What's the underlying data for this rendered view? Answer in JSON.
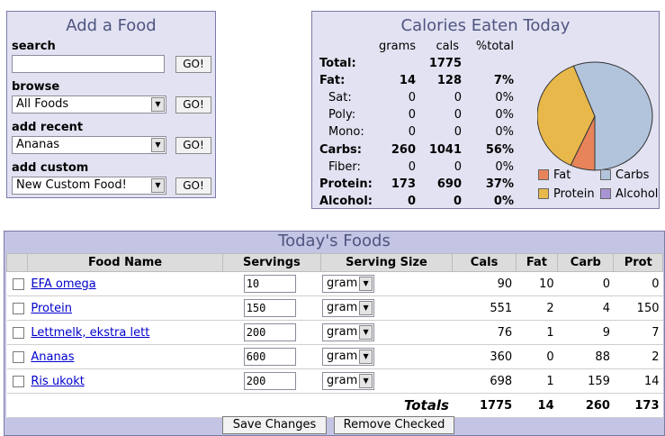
{
  "add_food": {
    "title": "Add a Food",
    "search_label": "search",
    "search_value": "",
    "browse_label": "browse",
    "browse_value": "All Foods",
    "recent_label": "add recent",
    "recent_value": "Ananas",
    "custom_label": "add custom",
    "custom_value": "New Custom Food!",
    "go_label": "GO!"
  },
  "calories": {
    "title": "Calories Eaten Today",
    "headers": [
      "grams",
      "cals",
      "%total"
    ],
    "rows": [
      {
        "label": "Total:",
        "grams": "",
        "cals": "1775",
        "pct": "",
        "bold": true
      },
      {
        "label": "Fat:",
        "grams": "14",
        "cals": "128",
        "pct": "7%",
        "bold": true
      },
      {
        "label": "Sat:",
        "grams": "0",
        "cals": "0",
        "pct": "0%",
        "bold": false
      },
      {
        "label": "Poly:",
        "grams": "0",
        "cals": "0",
        "pct": "0%",
        "bold": false
      },
      {
        "label": "Mono:",
        "grams": "0",
        "cals": "0",
        "pct": "0%",
        "bold": false
      },
      {
        "label": "Carbs:",
        "grams": "260",
        "cals": "1041",
        "pct": "56%",
        "bold": true
      },
      {
        "label": "Fiber:",
        "grams": "0",
        "cals": "0",
        "pct": "0%",
        "bold": false
      },
      {
        "label": "Protein:",
        "grams": "173",
        "cals": "690",
        "pct": "37%",
        "bold": true
      },
      {
        "label": "Alcohol:",
        "grams": "0",
        "cals": "0",
        "pct": "0%",
        "bold": true
      }
    ],
    "legend": {
      "fat": "Fat",
      "carbs": "Carbs",
      "protein": "Protein",
      "alcohol": "Alcohol"
    },
    "colors": {
      "fat": "#e8845a",
      "carbs": "#b2c4dc",
      "protein": "#e8b84a",
      "alcohol": "#a894d4"
    },
    "pie_values": {
      "fat": 128,
      "carbs": 1041,
      "protein": 690,
      "alcohol": 0
    }
  },
  "foods": {
    "title": "Today's Foods",
    "columns": [
      "Food Name",
      "Servings",
      "Serving Size",
      "Cals",
      "Fat",
      "Carb",
      "Prot"
    ],
    "items": [
      {
        "name": "EFA omega",
        "servings": "10",
        "size": "gram",
        "cals": "90",
        "fat": "10",
        "carb": "0",
        "prot": "0"
      },
      {
        "name": "Protein",
        "servings": "150",
        "size": "gram",
        "cals": "551",
        "fat": "2",
        "carb": "4",
        "prot": "150"
      },
      {
        "name": "Lettmelk, ekstra lett",
        "servings": "200",
        "size": "gram",
        "cals": "76",
        "fat": "1",
        "carb": "9",
        "prot": "7"
      },
      {
        "name": "Ananas",
        "servings": "600",
        "size": "gram",
        "cals": "360",
        "fat": "0",
        "carb": "88",
        "prot": "2"
      },
      {
        "name": "Ris ukokt",
        "servings": "200",
        "size": "gram",
        "cals": "698",
        "fat": "1",
        "carb": "159",
        "prot": "14"
      }
    ],
    "totals": {
      "label": "Totals",
      "cals": "1775",
      "fat": "14",
      "carb": "260",
      "prot": "173"
    },
    "save_label": "Save Changes",
    "remove_label": "Remove Checked"
  }
}
